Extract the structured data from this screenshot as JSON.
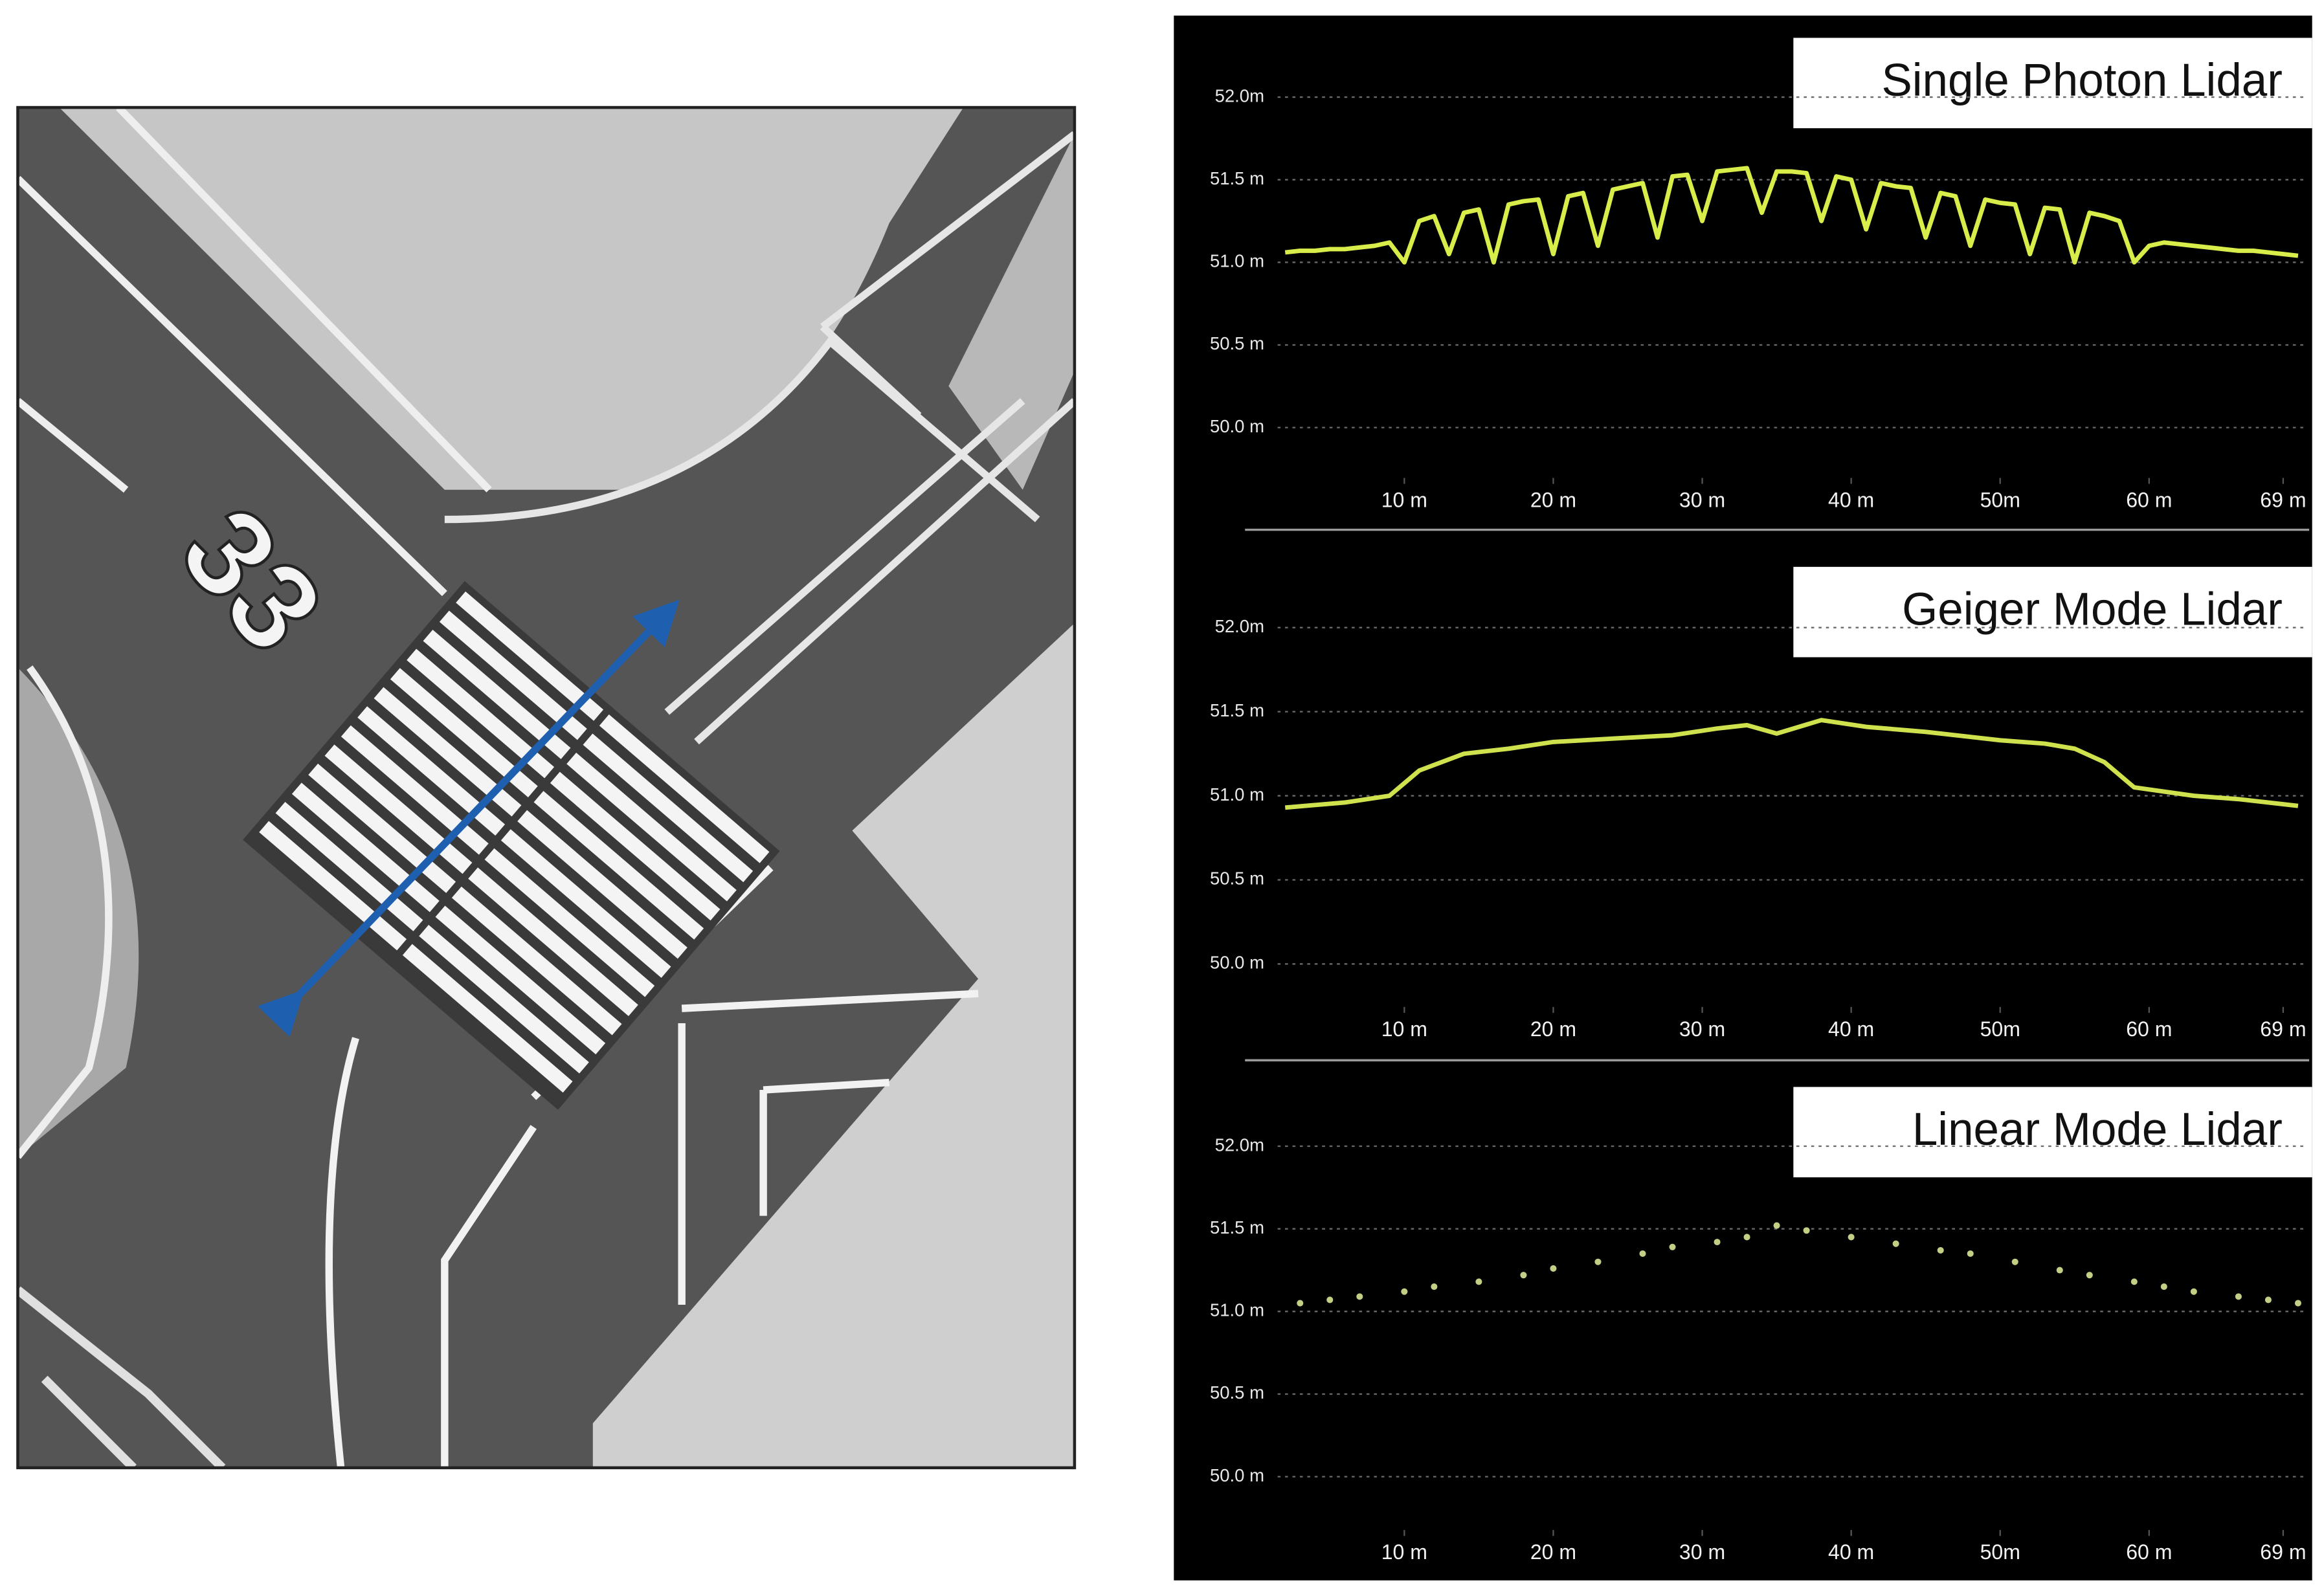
{
  "image": {
    "runway_number": "33"
  },
  "chart_data": [
    {
      "type": "line",
      "title": "Single Photon Lidar",
      "color": "#d8ec4a",
      "grid": true,
      "xlim": [
        0,
        70
      ],
      "ylim": [
        49.8,
        52.2
      ],
      "xticks": [
        {
          "value": 10,
          "label": "10 m"
        },
        {
          "value": 20,
          "label": "20 m"
        },
        {
          "value": 30,
          "label": "30 m"
        },
        {
          "value": 40,
          "label": "40 m"
        },
        {
          "value": 50,
          "label": "50m"
        },
        {
          "value": 60,
          "label": "60 m"
        },
        {
          "value": 69,
          "label": "69 m"
        }
      ],
      "yticks": [
        {
          "value": 52.0,
          "label": "52.0m"
        },
        {
          "value": 51.5,
          "label": "51.5 m"
        },
        {
          "value": 51.0,
          "label": "51.0 m"
        },
        {
          "value": 50.5,
          "label": "50.5 m"
        },
        {
          "value": 50.0,
          "label": "50.0 m"
        }
      ],
      "x": [
        2,
        3,
        4,
        5,
        6,
        7,
        8,
        9,
        10,
        11,
        12,
        13,
        14,
        15,
        16,
        17,
        18,
        19,
        20,
        21,
        22,
        23,
        24,
        25,
        26,
        27,
        28,
        29,
        30,
        31,
        32,
        33,
        34,
        35,
        36,
        37,
        38,
        39,
        40,
        41,
        42,
        43,
        44,
        45,
        46,
        47,
        48,
        49,
        50,
        51,
        52,
        53,
        54,
        55,
        56,
        57,
        58,
        59,
        60,
        61,
        62,
        63,
        64,
        65,
        66,
        67,
        68,
        69,
        70
      ],
      "values": [
        51.06,
        51.07,
        51.07,
        51.08,
        51.08,
        51.09,
        51.1,
        51.12,
        51.0,
        51.25,
        51.28,
        51.05,
        51.3,
        51.32,
        51.0,
        51.35,
        51.37,
        51.38,
        51.05,
        51.4,
        51.42,
        51.1,
        51.44,
        51.46,
        51.48,
        51.15,
        51.52,
        51.53,
        51.25,
        51.55,
        51.56,
        51.57,
        51.3,
        51.55,
        51.55,
        51.54,
        51.25,
        51.52,
        51.5,
        51.2,
        51.48,
        51.46,
        51.45,
        51.15,
        51.42,
        51.4,
        51.1,
        51.38,
        51.36,
        51.35,
        51.05,
        51.33,
        51.32,
        51.0,
        51.3,
        51.28,
        51.25,
        51.0,
        51.1,
        51.12,
        51.11,
        51.1,
        51.09,
        51.08,
        51.07,
        51.07,
        51.06,
        51.05,
        51.04
      ]
    },
    {
      "type": "line",
      "title": "Geiger Mode Lidar",
      "color": "#cfe24e",
      "grid": true,
      "xlim": [
        0,
        70
      ],
      "ylim": [
        49.8,
        52.2
      ],
      "xticks": [
        {
          "value": 10,
          "label": "10 m"
        },
        {
          "value": 20,
          "label": "20 m"
        },
        {
          "value": 30,
          "label": "30 m"
        },
        {
          "value": 40,
          "label": "40 m"
        },
        {
          "value": 50,
          "label": "50m"
        },
        {
          "value": 60,
          "label": "60 m"
        },
        {
          "value": 69,
          "label": "69 m"
        }
      ],
      "yticks": [
        {
          "value": 52.0,
          "label": "52.0m"
        },
        {
          "value": 51.5,
          "label": "51.5 m"
        },
        {
          "value": 51.0,
          "label": "51.0 m"
        },
        {
          "value": 50.5,
          "label": "50.5 m"
        },
        {
          "value": 50.0,
          "label": "50.0 m"
        }
      ],
      "x": [
        2,
        6,
        9,
        11,
        14,
        17,
        20,
        24,
        28,
        31,
        33,
        35,
        38,
        41,
        45,
        50,
        53,
        55,
        57,
        59,
        63,
        66,
        70
      ],
      "values": [
        50.93,
        50.96,
        51.0,
        51.15,
        51.25,
        51.28,
        51.32,
        51.34,
        51.36,
        51.4,
        51.42,
        51.37,
        51.45,
        51.41,
        51.38,
        51.33,
        51.31,
        51.28,
        51.2,
        51.05,
        51.0,
        50.98,
        50.94
      ]
    },
    {
      "type": "scatter",
      "title": "Linear Mode Lidar",
      "color": "#c2cf84",
      "grid": true,
      "xlim": [
        0,
        70
      ],
      "ylim": [
        49.8,
        52.2
      ],
      "xticks": [
        {
          "value": 10,
          "label": "10 m"
        },
        {
          "value": 20,
          "label": "20 m"
        },
        {
          "value": 30,
          "label": "30 m"
        },
        {
          "value": 40,
          "label": "40 m"
        },
        {
          "value": 50,
          "label": "50m"
        },
        {
          "value": 60,
          "label": "60 m"
        },
        {
          "value": 69,
          "label": "69 m"
        }
      ],
      "yticks": [
        {
          "value": 52.0,
          "label": "52.0m"
        },
        {
          "value": 51.5,
          "label": "51.5 m"
        },
        {
          "value": 51.0,
          "label": "51.0 m"
        },
        {
          "value": 50.5,
          "label": "50.5 m"
        },
        {
          "value": 50.0,
          "label": "50.0 m"
        }
      ],
      "x": [
        3,
        5,
        7,
        10,
        12,
        15,
        18,
        20,
        23,
        26,
        28,
        31,
        33,
        35,
        37,
        40,
        43,
        46,
        48,
        51,
        54,
        56,
        59,
        61,
        63,
        66,
        68,
        70
      ],
      "values": [
        51.05,
        51.07,
        51.09,
        51.12,
        51.15,
        51.18,
        51.22,
        51.26,
        51.3,
        51.35,
        51.39,
        51.42,
        51.45,
        51.52,
        51.49,
        51.45,
        51.41,
        51.37,
        51.35,
        51.3,
        51.25,
        51.22,
        51.18,
        51.15,
        51.12,
        51.09,
        51.07,
        51.05
      ]
    }
  ]
}
